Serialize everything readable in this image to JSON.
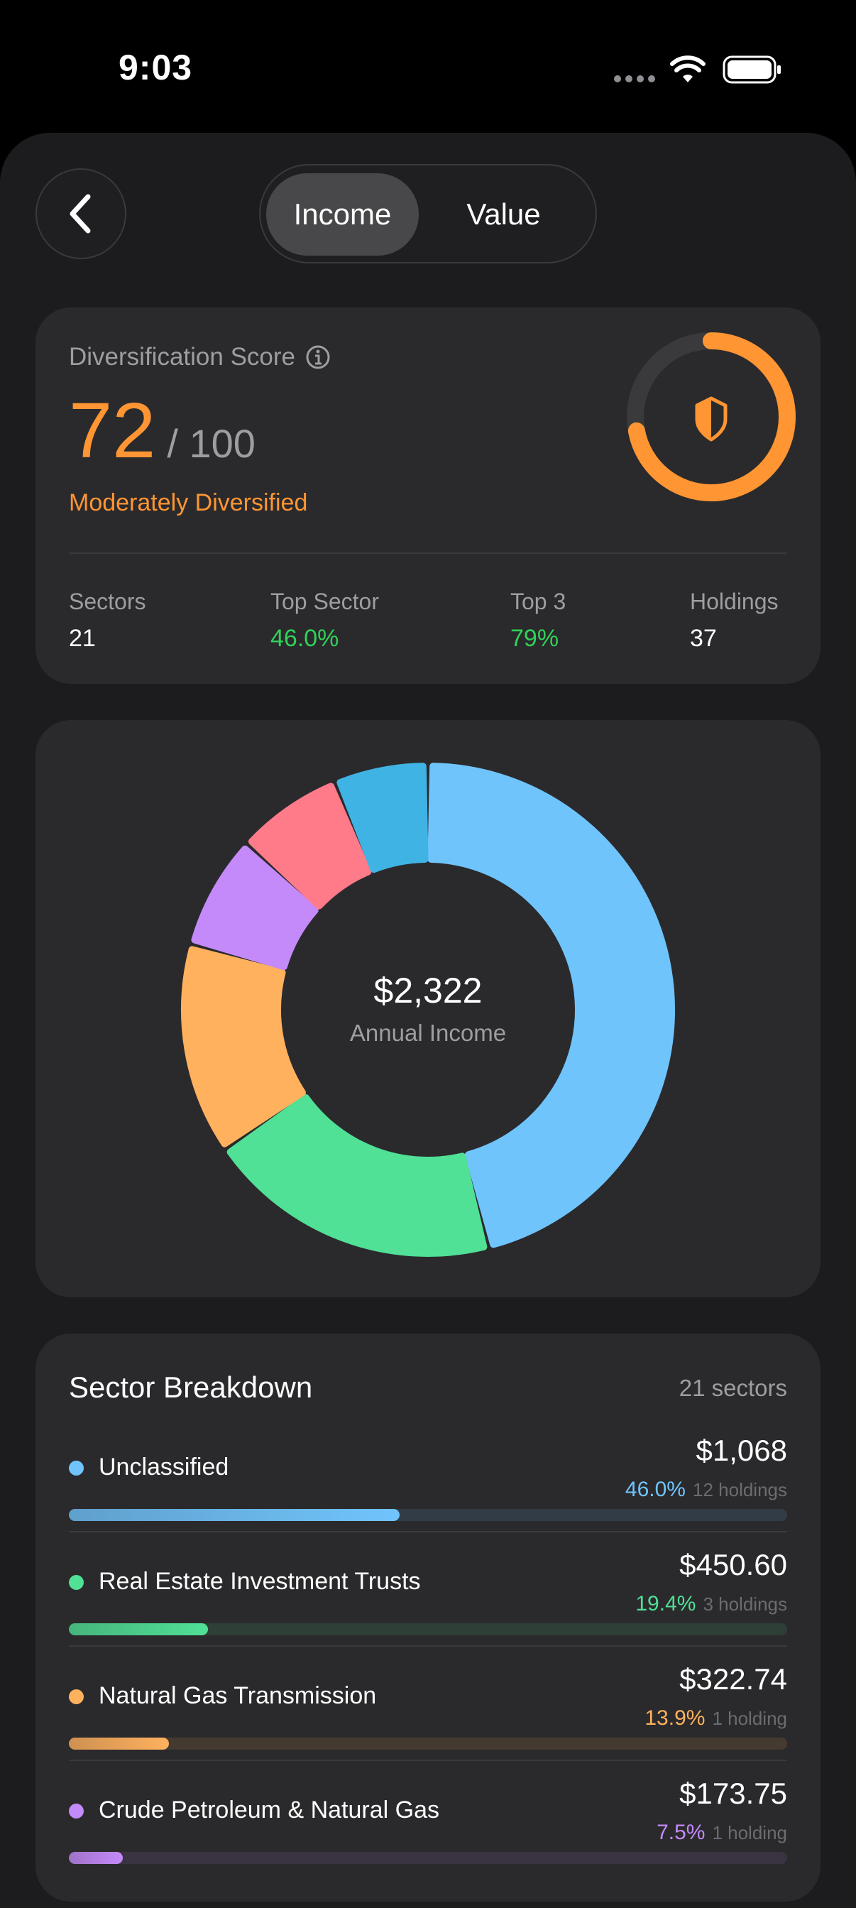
{
  "status": {
    "time": "9:03"
  },
  "header": {
    "segments": [
      {
        "label": "Income",
        "selected": true
      },
      {
        "label": "Value",
        "selected": false
      }
    ]
  },
  "score_card": {
    "title": "Diversification Score",
    "score": "72",
    "max": "/ 100",
    "score_value": 72,
    "rating": "Moderately Diversified",
    "accent": "#FF9533",
    "stats": [
      {
        "label": "Sectors",
        "value": "21"
      },
      {
        "label": "Top Sector",
        "value": "46.0%",
        "color": "#30D158"
      },
      {
        "label": "Top 3",
        "value": "79%",
        "color": "#30D158"
      },
      {
        "label": "Holdings",
        "value": "37"
      }
    ]
  },
  "chart_data": {
    "type": "pie",
    "donut": true,
    "center_value": "$2,322",
    "center_label": "Annual Income",
    "slices": [
      {
        "label": "Unclassified",
        "value": 46.0,
        "color": "#70C4FC"
      },
      {
        "label": "Real Estate Investment Trusts",
        "value": 19.4,
        "color": "#50E096"
      },
      {
        "label": "Natural Gas Transmission",
        "value": 13.9,
        "color": "#FFB15E"
      },
      {
        "label": "Crude Petroleum & Natural Gas",
        "value": 7.5,
        "color": "#C58AF9"
      },
      {
        "value": 7.0,
        "color": "#FF7B8A"
      },
      {
        "value": 6.2,
        "color": "#3FB4E4"
      }
    ]
  },
  "breakdown": {
    "title": "Sector Breakdown",
    "count": "21 sectors",
    "rows": [
      {
        "name": "Unclassified",
        "amount": "$1,068",
        "pct": "46.0%",
        "pct_value": 46.0,
        "holdings": "12 holdings",
        "color": "#70C4FC",
        "track": "#323c47"
      },
      {
        "name": "Real Estate Investment Trusts",
        "amount": "$450.60",
        "pct": "19.4%",
        "pct_value": 19.4,
        "holdings": "3 holdings",
        "color": "#50E096",
        "track": "#2d3f37"
      },
      {
        "name": "Natural Gas Transmission",
        "amount": "$322.74",
        "pct": "13.9%",
        "pct_value": 13.9,
        "holdings": "1 holding",
        "color": "#FFB15E",
        "track": "#443a30"
      },
      {
        "name": "Crude Petroleum & Natural Gas",
        "amount": "$173.75",
        "pct": "7.5%",
        "pct_value": 7.5,
        "holdings": "1 holding",
        "color": "#C58AF9",
        "track": "#3a3342"
      }
    ]
  }
}
